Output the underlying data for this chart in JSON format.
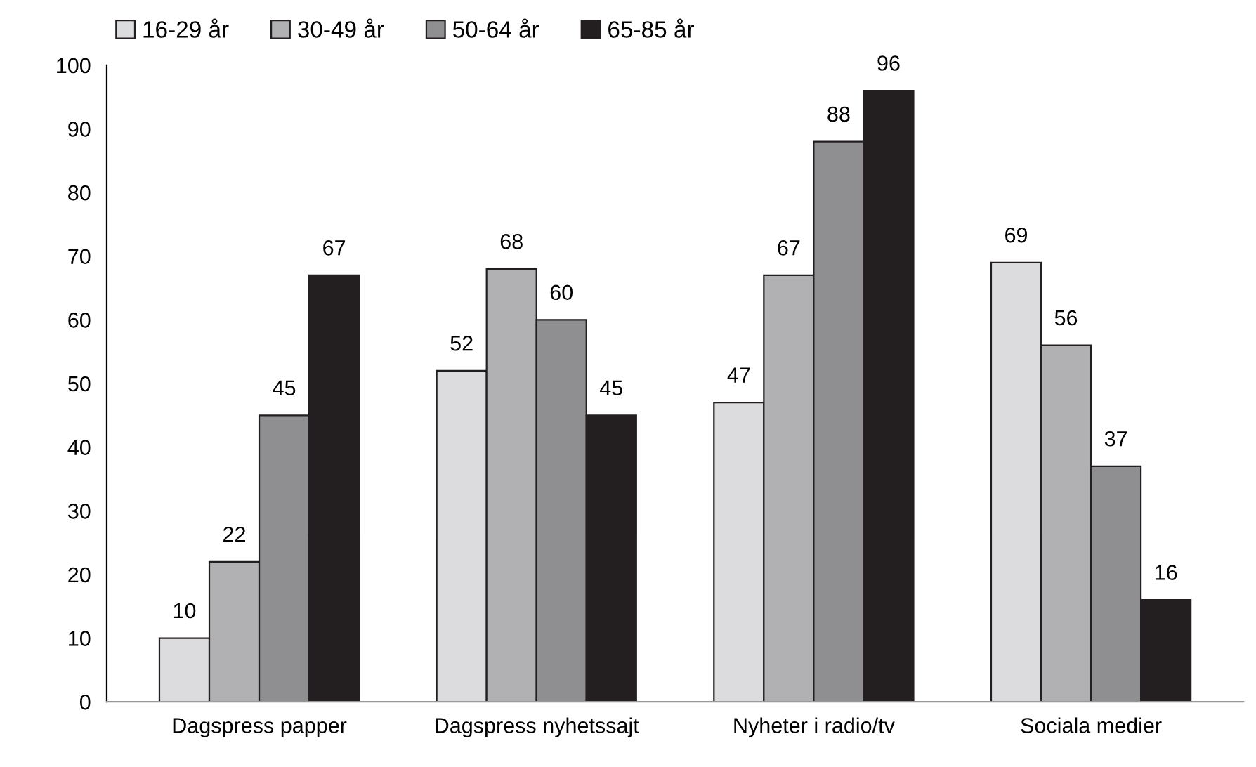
{
  "chart_data": {
    "type": "bar",
    "categories": [
      "Dagspress papper",
      "Dagspress nyhetssajt",
      "Nyheter i radio/tv",
      "Sociala medier"
    ],
    "series": [
      {
        "name": "16-29 år",
        "color": "#dcdcde",
        "values": [
          10,
          52,
          47,
          69
        ]
      },
      {
        "name": "30-49 år",
        "color": "#b1b1b4",
        "values": [
          22,
          68,
          67,
          56
        ]
      },
      {
        "name": "50-64 år",
        "color": "#8f8f92",
        "values": [
          45,
          60,
          88,
          37
        ]
      },
      {
        "name": "65-85 år",
        "color": "#231f20",
        "values": [
          67,
          45,
          96,
          16
        ]
      }
    ],
    "ylim": [
      0,
      100
    ],
    "yticks": [
      0,
      10,
      20,
      30,
      40,
      50,
      60,
      70,
      80,
      90,
      100
    ],
    "data_labels": true,
    "legend": "top left",
    "grid": false
  }
}
